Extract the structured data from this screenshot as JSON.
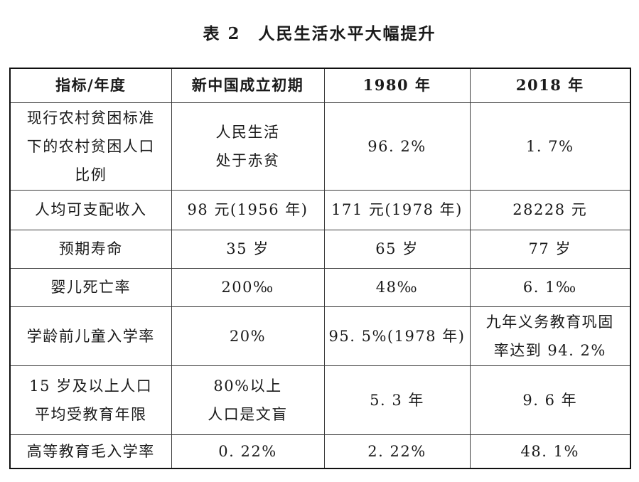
{
  "page": {
    "background_color": "#ffffff",
    "text_color": "#1a1a1a",
    "border_color": "#101010"
  },
  "title": "表 2　人民生活水平大幅提升",
  "table": {
    "headers": [
      "指标/年度",
      "新中国成立初期",
      "1980 年",
      "2018 年"
    ],
    "rows": [
      {
        "cells": [
          "现行农村贫困标准\n下的农村贫困人口\n比例",
          "人民生活\n处于赤贫",
          "96. 2%",
          "1. 7%"
        ]
      },
      {
        "cells": [
          "人均可支配收入",
          "98 元(1956 年)",
          "171 元(1978 年)",
          "28228 元"
        ]
      },
      {
        "cells": [
          "预期寿命",
          "35 岁",
          "65 岁",
          "77 岁"
        ]
      },
      {
        "cells": [
          "婴儿死亡率",
          "200‰",
          "48‰",
          "6. 1‰"
        ]
      },
      {
        "cells": [
          "学龄前儿童入学率",
          "20%",
          "95. 5%(1978 年)",
          "九年义务教育巩固\n率达到 94. 2%"
        ]
      },
      {
        "cells": [
          "15 岁及以上人口\n平均受教育年限",
          "80%以上\n人口是文盲",
          "5. 3 年",
          "9. 6 年"
        ]
      },
      {
        "cells": [
          "高等教育毛入学率",
          "0. 22%",
          "2. 22%",
          "48. 1%"
        ]
      }
    ]
  }
}
